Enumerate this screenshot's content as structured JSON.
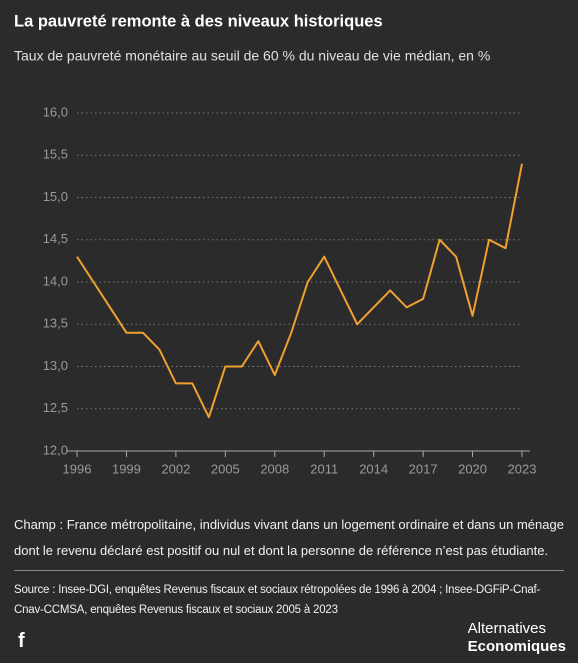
{
  "chart_data": {
    "type": "line",
    "title": "La pauvreté remonte à des niveaux historiques",
    "subtitle": "Taux de pauvreté monétaire au seuil de 60 % du niveau de vie médian, en %",
    "x": [
      1996,
      1997,
      1998,
      1999,
      2000,
      2001,
      2002,
      2003,
      2004,
      2005,
      2006,
      2007,
      2008,
      2009,
      2010,
      2011,
      2012,
      2013,
      2014,
      2015,
      2016,
      2017,
      2018,
      2019,
      2020,
      2021,
      2022,
      2023
    ],
    "values": [
      14.3,
      14.0,
      13.7,
      13.4,
      13.4,
      13.2,
      12.8,
      12.8,
      12.4,
      13.0,
      13.0,
      13.3,
      12.9,
      13.4,
      14.0,
      14.3,
      13.9,
      13.5,
      13.7,
      13.9,
      13.7,
      13.8,
      14.5,
      14.3,
      13.6,
      14.5,
      14.4,
      15.4
    ],
    "color": "#f0a030",
    "xlim": [
      1996,
      2023
    ],
    "xticks": [
      1996,
      1999,
      2002,
      2005,
      2008,
      2011,
      2014,
      2017,
      2020,
      2023
    ],
    "ylim": [
      12.0,
      16.0
    ],
    "yticks": [
      {
        "value": 12.0,
        "label": "12,0"
      },
      {
        "value": 12.5,
        "label": "12,5"
      },
      {
        "value": 13.0,
        "label": "13,0"
      },
      {
        "value": 13.5,
        "label": "13,5"
      },
      {
        "value": 14.0,
        "label": "14,0"
      },
      {
        "value": 14.5,
        "label": "14,5"
      },
      {
        "value": 15.0,
        "label": "15,0"
      },
      {
        "value": 15.5,
        "label": "15,5"
      },
      {
        "value": 16.0,
        "label": "16,0"
      }
    ],
    "grid": true
  },
  "notes": {
    "scope": "Champ : France métropolitaine, individus vivant dans un logement ordinaire et dans un ménage dont le revenu déclaré est positif ou nul et dont la personne de référence n’est pas étudiante.",
    "source": "Source : Insee-DGI, enquêtes Revenus fiscaux et sociaux rétropolées de 1996 à 2004 ; Insee-DGFiP-Cnaf-Cnav-CCMSA, enquêtes Revenus fiscaux et sociaux 2005 à 2023"
  },
  "footer": {
    "share": "f",
    "logo_top": "Alternatives",
    "logo_bottom": "Economiques"
  }
}
